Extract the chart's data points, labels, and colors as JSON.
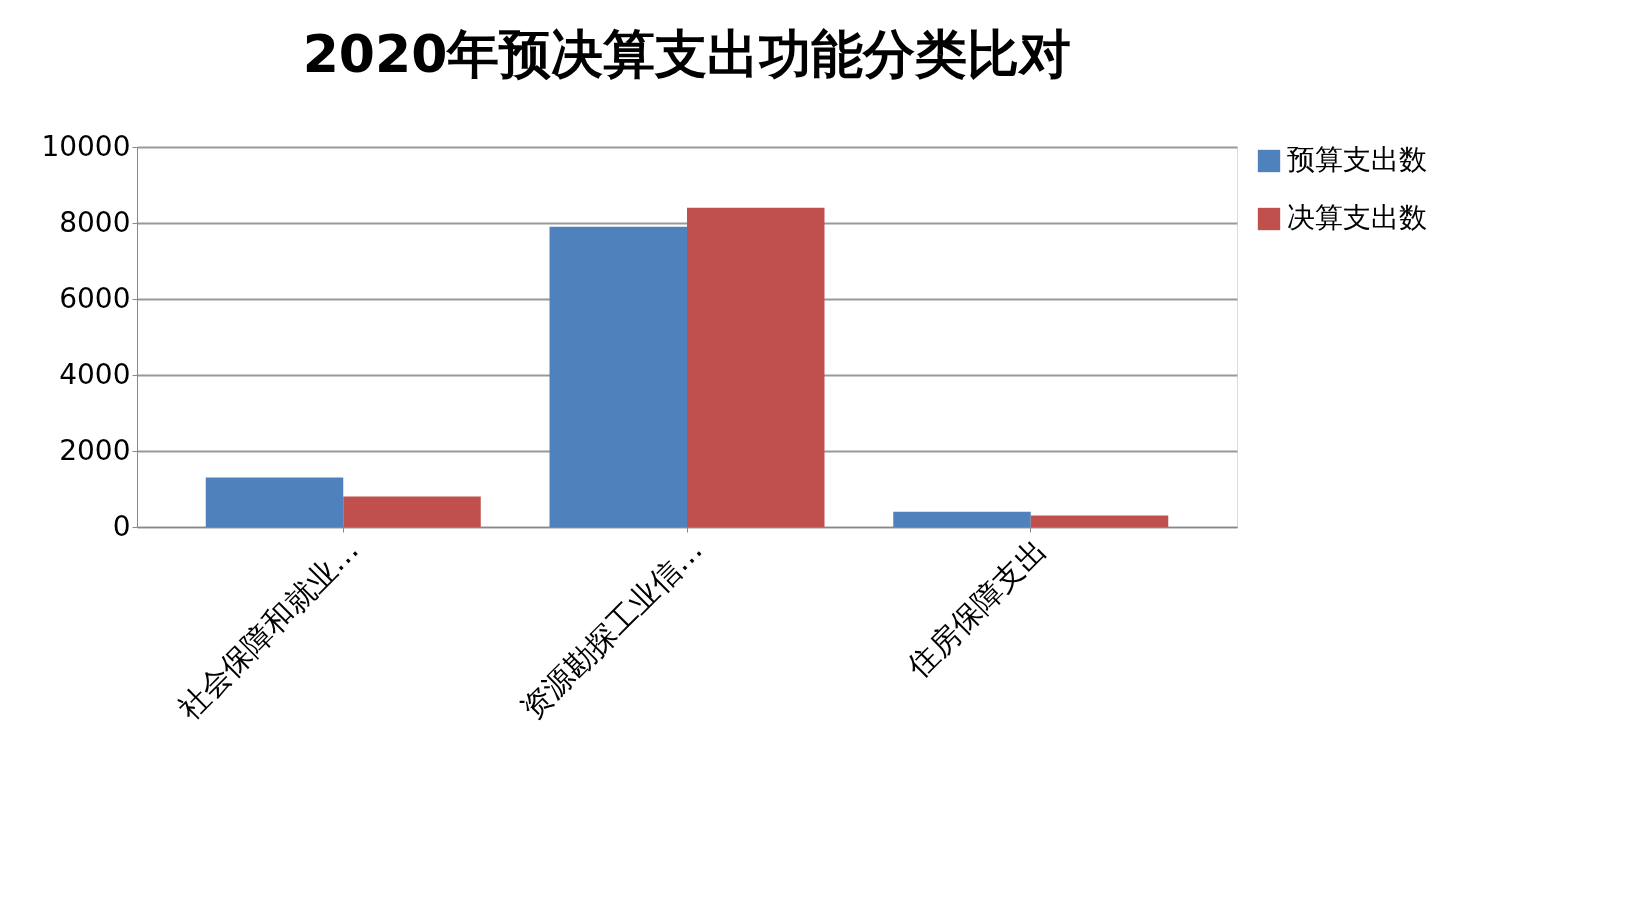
{
  "chart_data": {
    "type": "bar",
    "title": "2020年预决算支出功能分类比对",
    "categories": [
      "社会保障和就业…",
      "资源勘探工业信…",
      "住房保障支出"
    ],
    "series": [
      {
        "name": "预算支出数",
        "color": "#4f81bd",
        "values": [
          1300,
          7900,
          400
        ]
      },
      {
        "name": "决算支出数",
        "color": "#c0504d",
        "values": [
          800,
          8400,
          300
        ]
      }
    ],
    "ylim": [
      0,
      10000
    ],
    "yticks": [
      0,
      2000,
      4000,
      6000,
      8000,
      10000
    ],
    "grid": "y",
    "legend": "right"
  }
}
